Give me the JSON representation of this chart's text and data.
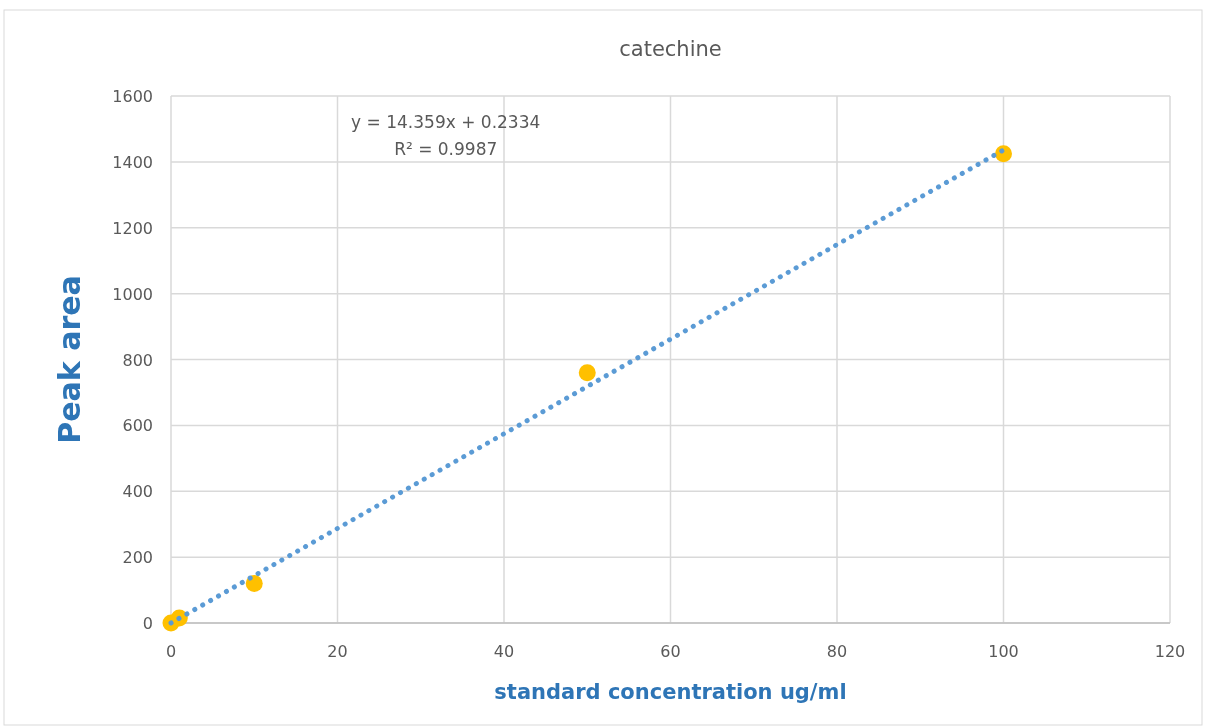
{
  "chart_data": {
    "type": "scatter",
    "title": "catechine",
    "xlabel": "standard concentration ug/ml",
    "ylabel": "Peak area",
    "x": [
      0,
      1,
      10,
      50,
      100
    ],
    "series": [
      {
        "color": "#ffc000",
        "values": [
          0,
          15,
          120,
          760,
          1425
        ],
        "marker": "circle"
      },
      {
        "type": "line",
        "color": "#5b9bd5",
        "x": [
          0,
          100
        ],
        "values": [
          0,
          1436
        ],
        "line_style": "dotted",
        "marker": "none"
      }
    ],
    "annotations": [
      "y = 14.359x + 0.2334",
      "R² = 0.9987"
    ],
    "xlim": [
      0,
      120
    ],
    "xticks": [
      0,
      20,
      40,
      60,
      80,
      100,
      120
    ],
    "ylim": [
      0,
      1600
    ],
    "yticks": [
      0,
      200,
      400,
      600,
      800,
      1000,
      1200,
      1400,
      1600
    ],
    "grid": true
  }
}
